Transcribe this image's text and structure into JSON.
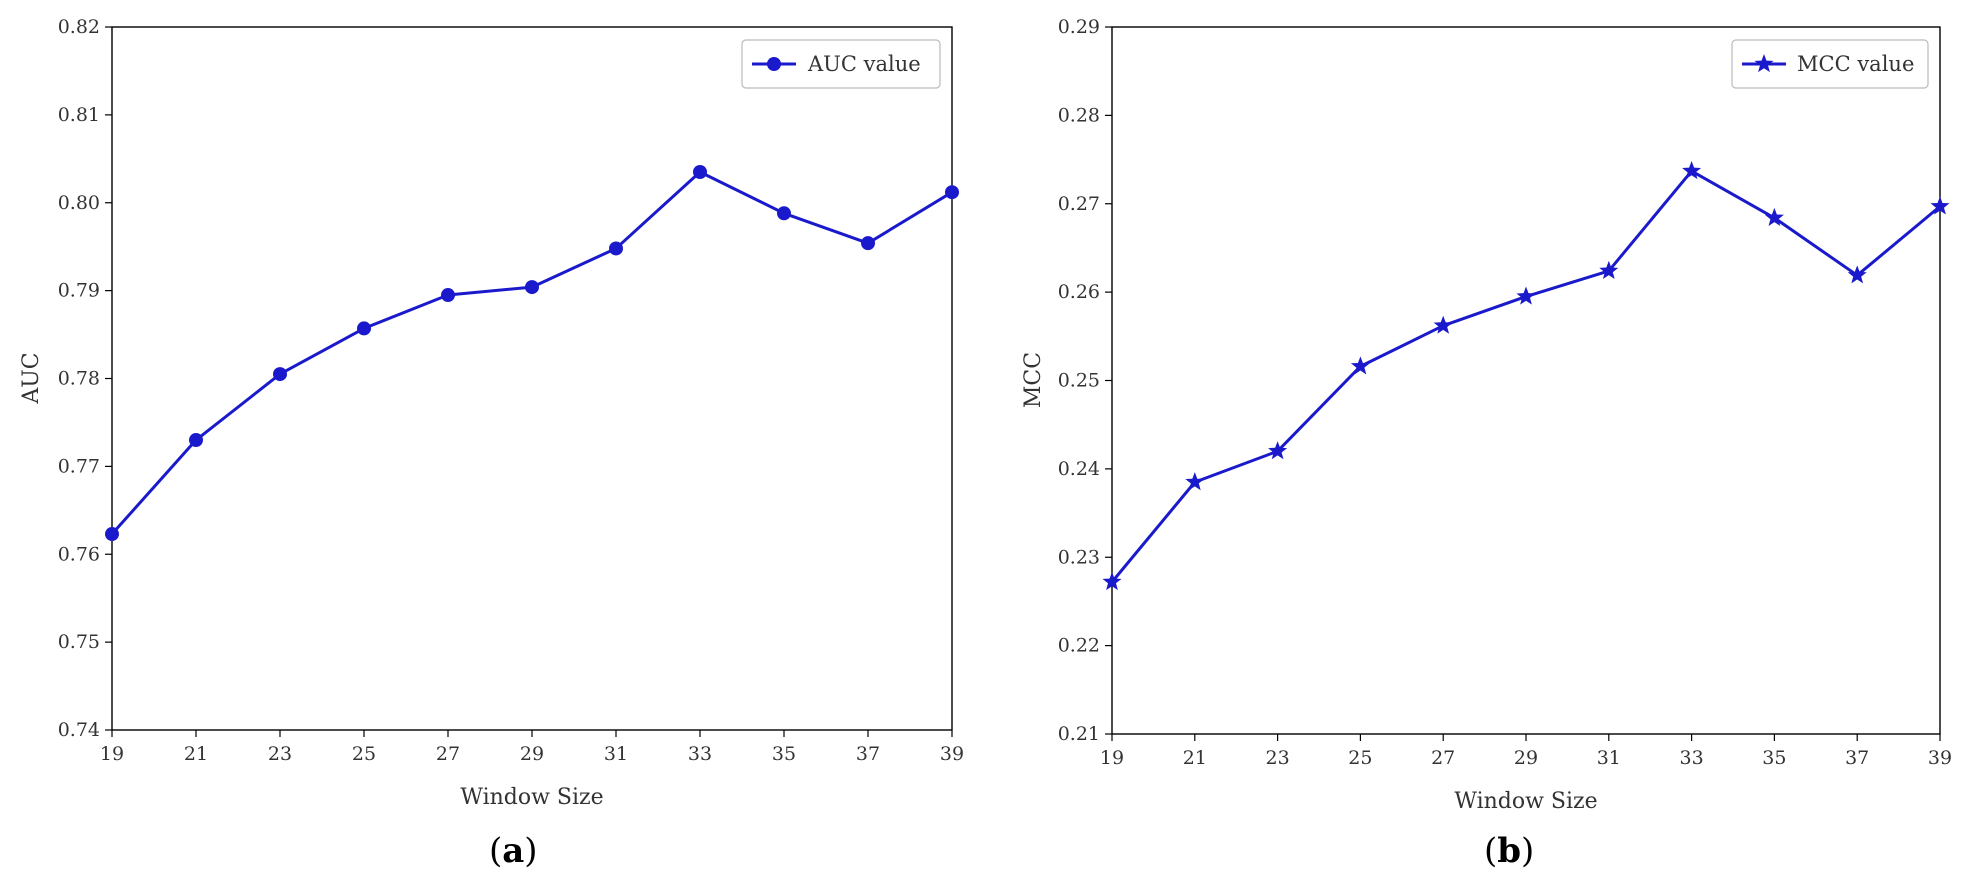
{
  "chart_data": [
    {
      "type": "line",
      "panel": "a",
      "panel_label": {
        "open": "(",
        "letter": "a",
        "close": ")"
      },
      "x": [
        19,
        21,
        23,
        25,
        27,
        29,
        31,
        33,
        35,
        37,
        39
      ],
      "series": [
        {
          "name": "AUC value",
          "marker": "circle",
          "color": "#1a1acc",
          "values": [
            0.7623,
            0.773,
            0.7805,
            0.7857,
            0.7895,
            0.7904,
            0.7948,
            0.8035,
            0.7988,
            0.7954,
            0.8012
          ]
        }
      ],
      "xlabel": "Window Size",
      "ylabel": "AUC",
      "xlim": [
        19,
        39
      ],
      "ylim": [
        0.74,
        0.82
      ],
      "yticks": [
        "0.74",
        "0.75",
        "0.76",
        "0.77",
        "0.78",
        "0.79",
        "0.80",
        "0.81",
        "0.82"
      ],
      "xticks": [
        "19",
        "21",
        "23",
        "25",
        "27",
        "29",
        "31",
        "33",
        "35",
        "37",
        "39"
      ],
      "grid": false,
      "legend": "top-right"
    },
    {
      "type": "line",
      "panel": "b",
      "panel_label": {
        "open": "(",
        "letter": "b",
        "close": ")"
      },
      "x": [
        19,
        21,
        23,
        25,
        27,
        29,
        31,
        33,
        35,
        37,
        39
      ],
      "series": [
        {
          "name": "MCC value",
          "marker": "star",
          "color": "#1a1acc",
          "values": [
            0.2272,
            0.2385,
            0.242,
            0.2516,
            0.2562,
            0.2595,
            0.2624,
            0.2737,
            0.2684,
            0.2619,
            0.2697
          ]
        }
      ],
      "xlabel": "Window Size",
      "ylabel": "MCC",
      "xlim": [
        19,
        39
      ],
      "ylim": [
        0.21,
        0.29
      ],
      "yticks": [
        "0.21",
        "0.22",
        "0.23",
        "0.24",
        "0.25",
        "0.26",
        "0.27",
        "0.28",
        "0.29"
      ],
      "xticks": [
        "19",
        "21",
        "23",
        "25",
        "27",
        "29",
        "31",
        "33",
        "35",
        "37",
        "39"
      ],
      "grid": false,
      "legend": "top-right"
    }
  ]
}
